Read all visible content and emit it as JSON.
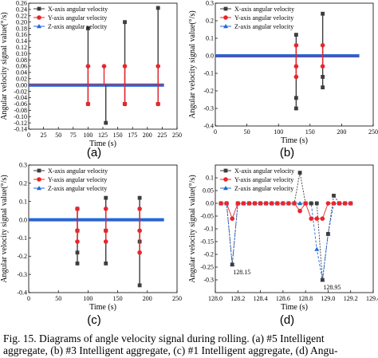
{
  "caption": {
    "line1": "Fig. 15.    Diagrams of angle velocity signal during rolling. (a) #5 Intelligent",
    "line2": "aggregate, (b) #3 Intelligent aggregate, (c) #1 Intelligent aggregate, (d) Angu-"
  },
  "colors": {
    "x": "#3d3d3d",
    "y": "#e8262d",
    "z": "#1f67d8"
  },
  "chart_data": [
    {
      "panel": "(a)",
      "type": "line",
      "xlabel": "Time (s)",
      "ylabel": "Angular velocity signal value(°/s)",
      "xlim": [
        0,
        250
      ],
      "ylim": [
        -0.14,
        0.26
      ],
      "xticks": [
        0,
        25,
        50,
        75,
        100,
        125,
        150,
        175,
        200,
        225,
        250
      ],
      "yticks": [
        -0.14,
        -0.12,
        -0.1,
        -0.08,
        -0.06,
        -0.04,
        -0.02,
        0.0,
        0.02,
        0.04,
        0.06,
        0.08,
        0.1,
        0.12,
        0.14,
        0.16,
        0.18,
        0.2,
        0.22,
        0.24,
        0.26
      ],
      "ytick_labels": [
        "-0.14",
        "-0.12",
        "-0.10",
        "-0.08",
        "-0.06",
        "-0.04",
        "-0.02",
        "0.00",
        "0.02",
        "0.04",
        "0.06",
        "0.08",
        "0.10",
        "0.12",
        "0.14",
        "0.16",
        "0.18",
        "0.20",
        "0.22",
        "0.24",
        "0.26"
      ],
      "x_range": [
        0,
        228
      ],
      "legend": [
        "X-axis angular velocity",
        "Y-axis angular velocity",
        "Z-axis angular velocity"
      ],
      "legend_position": "top-left",
      "spikes": [
        {
          "series": "X",
          "t": 100,
          "values": [
            0.18,
            -0.06
          ]
        },
        {
          "series": "Y",
          "t": 100,
          "values": [
            0.06,
            -0.06
          ]
        },
        {
          "series": "X",
          "t": 130,
          "values": [
            -0.12
          ]
        },
        {
          "series": "Y",
          "t": 127,
          "values": [
            0.06
          ]
        },
        {
          "series": "X",
          "t": 162,
          "values": [
            0.2,
            -0.06
          ]
        },
        {
          "series": "Y",
          "t": 162,
          "values": [
            0.06,
            -0.06
          ]
        },
        {
          "series": "X",
          "t": 218,
          "values": [
            0.245,
            -0.06
          ]
        },
        {
          "series": "Y",
          "t": 218,
          "values": [
            0.06,
            -0.06
          ]
        }
      ],
      "annotations": []
    },
    {
      "panel": "(b)",
      "type": "line",
      "xlabel": "Time (s)",
      "ylabel": "Angular velocity signal value(°/s)",
      "xlim": [
        0,
        250
      ],
      "ylim": [
        -0.4,
        0.3
      ],
      "xticks": [
        0,
        50,
        100,
        150,
        200,
        250
      ],
      "yticks": [
        -0.4,
        -0.3,
        -0.2,
        -0.1,
        0.0,
        0.1,
        0.2,
        0.3
      ],
      "ytick_labels": [
        "-0.4",
        "-0.3",
        "-0.2",
        "-0.1",
        "0.0",
        "0.1",
        "0.2",
        "0.3"
      ],
      "x_range": [
        0,
        228
      ],
      "legend": [
        "X-axis angular velocity",
        "Y-axis angular velocity",
        "Z-axis angular velocity"
      ],
      "legend_position": "top-left",
      "spikes": [
        {
          "series": "X",
          "t": 128,
          "values": [
            0.12,
            -0.3,
            -0.24
          ]
        },
        {
          "series": "Y",
          "t": 128,
          "values": [
            0.06,
            -0.06,
            -0.12
          ]
        },
        {
          "series": "X",
          "t": 170,
          "values": [
            0.24,
            -0.12,
            -0.18
          ]
        },
        {
          "series": "Y",
          "t": 170,
          "values": [
            0.06,
            -0.06
          ]
        }
      ],
      "annotations": []
    },
    {
      "panel": "(c)",
      "type": "line",
      "xlabel": "Time (s)",
      "ylabel": "Angular velocity signal value(°/s)",
      "xlim": [
        0,
        250
      ],
      "ylim": [
        -0.4,
        0.3
      ],
      "xticks": [
        0,
        50,
        100,
        150,
        200,
        250
      ],
      "yticks": [
        -0.4,
        -0.3,
        -0.2,
        -0.1,
        0.0,
        0.1,
        0.2,
        0.3
      ],
      "ytick_labels": [
        "-0.4",
        "-0.3",
        "-0.2",
        "-0.1",
        "0.0",
        "0.1",
        "0.2",
        "0.3"
      ],
      "x_range": [
        0,
        228
      ],
      "legend": [
        "X-axis angular velocity",
        "Y-axis angular velocity",
        "Z-axis angular velocity"
      ],
      "legend_position": "top-left",
      "spikes": [
        {
          "series": "X",
          "t": 82,
          "values": [
            0.06,
            -0.06,
            -0.24,
            -0.18
          ]
        },
        {
          "series": "Y",
          "t": 82,
          "values": [
            0.06,
            -0.06,
            -0.12
          ]
        },
        {
          "series": "X",
          "t": 130,
          "values": [
            0.12,
            -0.06,
            -0.24
          ]
        },
        {
          "series": "Y",
          "t": 130,
          "values": [
            0.06,
            -0.06,
            -0.12
          ]
        },
        {
          "series": "X",
          "t": 187,
          "values": [
            0.12,
            -0.12,
            -0.36
          ]
        },
        {
          "series": "Y",
          "t": 187,
          "values": [
            0.06,
            -0.06,
            -0.18
          ]
        }
      ],
      "annotations": []
    },
    {
      "panel": "(d)",
      "type": "line",
      "xlabel": "Time (s)",
      "ylabel": "Angular velocity signal value(°/s)",
      "xlim": [
        128.0,
        129.4
      ],
      "ylim": [
        -0.35,
        0.15
      ],
      "xticks": [
        128.0,
        128.2,
        128.4,
        128.6,
        128.8,
        129.0,
        129.2,
        129.4
      ],
      "xtick_labels": [
        "128.0",
        "128.2",
        "128.4",
        "128.6",
        "128.8",
        "129.0",
        "129.2",
        "129.4"
      ],
      "yticks": [
        -0.3,
        -0.25,
        -0.2,
        -0.15,
        -0.1,
        -0.05,
        0.0,
        0.05,
        0.1
      ],
      "ytick_labels": [
        "-0.3",
        "-0.25",
        "-0.2",
        "-0.15",
        "-0.1",
        "-0.05",
        "0.0",
        "0.05",
        "0.1"
      ],
      "legend": [
        "X-axis angular velocity",
        "Y-axis angular velocity",
        "Z-axis angular velocity"
      ],
      "legend_position": "top-left",
      "series": [
        {
          "name": "X-axis angular velocity",
          "x": [
            128.05,
            128.1,
            128.15,
            128.2,
            128.25,
            128.3,
            128.35,
            128.4,
            128.45,
            128.5,
            128.55,
            128.6,
            128.65,
            128.7,
            128.75,
            128.8,
            128.85,
            128.9,
            128.95,
            129.0,
            129.05,
            129.1,
            129.15,
            129.2
          ],
          "y": [
            0.0,
            0.0,
            -0.24,
            0.0,
            0.0,
            0.0,
            0.0,
            0.0,
            0.0,
            0.0,
            0.0,
            0.0,
            0.0,
            0.0,
            0.12,
            0.0,
            0.0,
            0.0,
            -0.3,
            -0.12,
            0.03,
            0.0,
            0.0,
            0.0
          ]
        },
        {
          "name": "Y-axis angular velocity",
          "x": [
            128.05,
            128.1,
            128.15,
            128.2,
            128.25,
            128.3,
            128.35,
            128.4,
            128.45,
            128.5,
            128.55,
            128.6,
            128.65,
            128.7,
            128.75,
            128.8,
            128.85,
            128.9,
            128.95,
            129.0,
            129.05,
            129.1,
            129.15,
            129.2
          ],
          "y": [
            0.0,
            0.0,
            -0.06,
            0.0,
            0.0,
            0.0,
            0.0,
            0.0,
            0.0,
            0.0,
            0.0,
            0.0,
            0.0,
            0.0,
            -0.03,
            0.0,
            -0.06,
            -0.06,
            -0.06,
            0.0,
            0.0,
            0.0,
            0.0,
            0.0
          ]
        },
        {
          "name": "Z-axis angular velocity",
          "x": [
            128.05,
            128.1,
            128.15,
            128.2,
            128.25,
            128.3,
            128.35,
            128.4,
            128.45,
            128.5,
            128.55,
            128.6,
            128.65,
            128.7,
            128.75,
            128.8,
            128.85,
            128.9,
            128.95,
            129.0,
            129.05,
            129.1,
            129.15,
            129.2
          ],
          "y": [
            0.0,
            0.0,
            -0.24,
            0.0,
            0.0,
            0.0,
            0.0,
            0.0,
            0.0,
            0.0,
            0.0,
            0.0,
            0.0,
            0.0,
            0.0,
            0.0,
            0.0,
            -0.18,
            -0.3,
            -0.12,
            0.0,
            0.0,
            0.0,
            0.0
          ]
        }
      ],
      "annotations": [
        {
          "text": "128.15",
          "x": 128.15,
          "y": -0.24
        },
        {
          "text": "128.95",
          "x": 128.95,
          "y": -0.3
        }
      ]
    }
  ]
}
